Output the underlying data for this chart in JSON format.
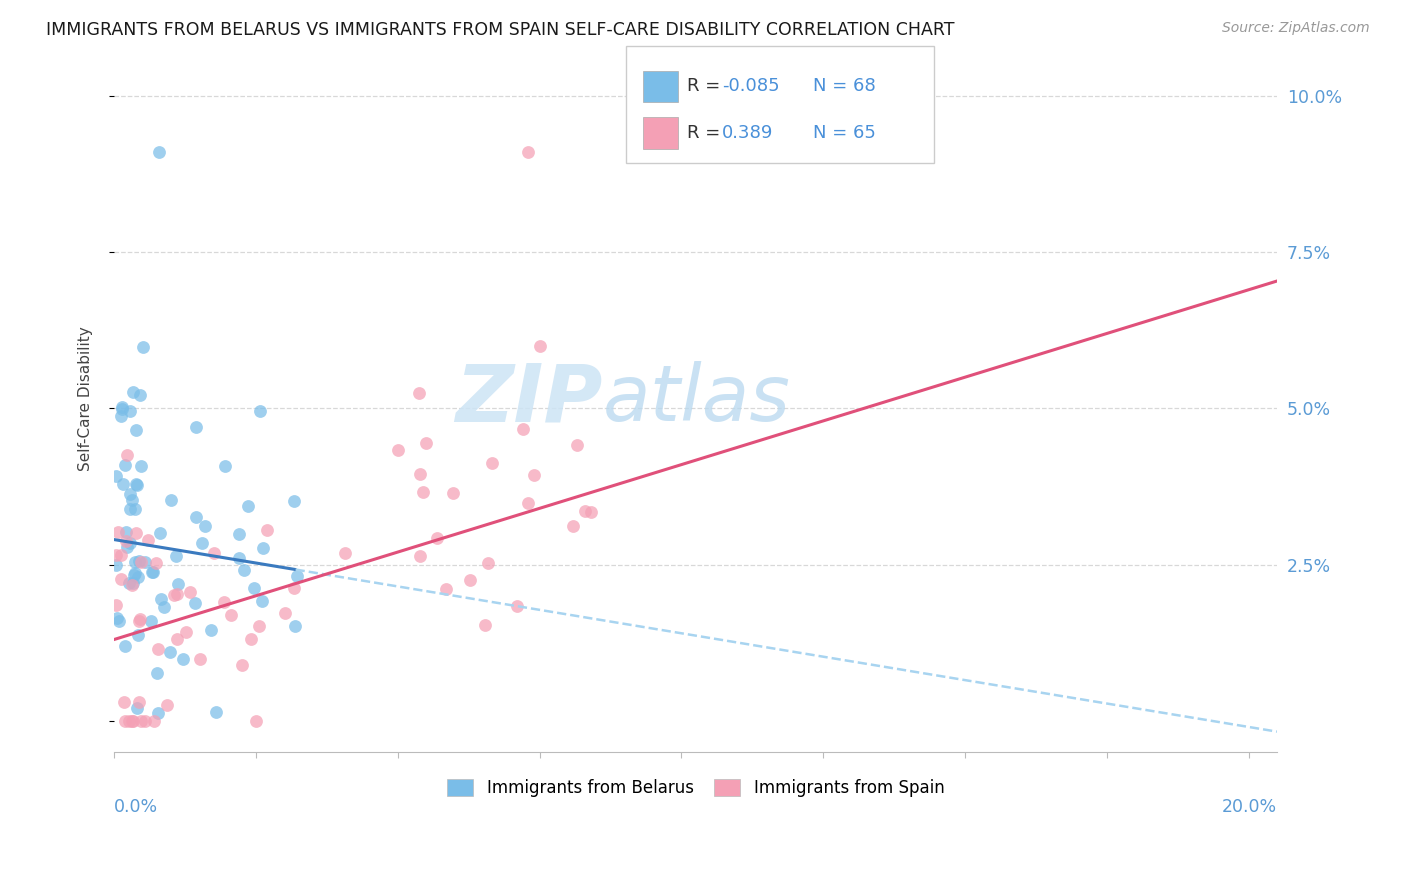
{
  "title": "IMMIGRANTS FROM BELARUS VS IMMIGRANTS FROM SPAIN SELF-CARE DISABILITY CORRELATION CHART",
  "source": "Source: ZipAtlas.com",
  "ylabel": "Self-Care Disability",
  "legend_label1": "Immigrants from Belarus",
  "legend_label2": "Immigrants from Spain",
  "color_belarus": "#7abde8",
  "color_spain": "#f4a0b5",
  "color_line_belarus_solid": "#3a7abf",
  "color_line_belarus_dash": "#a8d4f0",
  "color_line_spain": "#e0507a",
  "color_ytick": "#5b9bd5",
  "color_xtick": "#5b9bd5",
  "grid_color": "#d8d8d8",
  "xlim": [
    0.0,
    0.205
  ],
  "ylim": [
    -0.005,
    0.108
  ],
  "yticks": [
    0.0,
    0.025,
    0.05,
    0.075,
    0.1
  ],
  "ytick_labels": [
    "",
    "2.5%",
    "5.0%",
    "7.5%",
    "10.0%"
  ],
  "belarus_slope": -0.15,
  "belarus_intercept": 0.029,
  "spain_slope": 0.28,
  "spain_intercept": 0.013
}
